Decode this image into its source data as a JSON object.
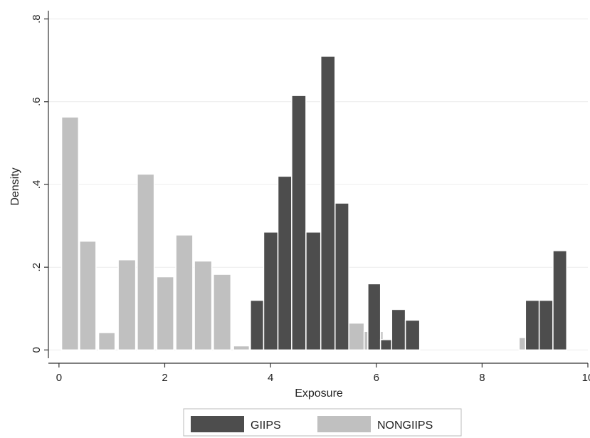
{
  "chart_data": {
    "type": "bar",
    "xlabel": "Exposure",
    "ylabel": "Density",
    "xlim": [
      -0.2,
      10
    ],
    "ylim": [
      -0.02,
      0.82
    ],
    "xticks": [
      0,
      2,
      4,
      6,
      8,
      10
    ],
    "xtick_labels": [
      "0",
      "2",
      "4",
      "6",
      "8",
      "10"
    ],
    "yticks": [
      0,
      0.2,
      0.4,
      0.6,
      0.8
    ],
    "ytick_labels": [
      "0",
      ".2",
      ".4",
      ".6",
      ".8"
    ],
    "grid": true,
    "legend": "bottom",
    "series": [
      {
        "name": "GIIPS",
        "color": "#4d4d4d",
        "bins": [
          {
            "x0": 3.62,
            "x1": 3.87,
            "value": 0.12
          },
          {
            "x0": 3.87,
            "x1": 4.14,
            "value": 0.285
          },
          {
            "x0": 4.14,
            "x1": 4.4,
            "value": 0.42
          },
          {
            "x0": 4.4,
            "x1": 4.67,
            "value": 0.615
          },
          {
            "x0": 4.67,
            "x1": 4.95,
            "value": 0.285
          },
          {
            "x0": 4.95,
            "x1": 5.22,
            "value": 0.71
          },
          {
            "x0": 5.22,
            "x1": 5.48,
            "value": 0.355
          },
          {
            "x0": 5.84,
            "x1": 6.08,
            "value": 0.16
          },
          {
            "x0": 6.08,
            "x1": 6.29,
            "value": 0.025
          },
          {
            "x0": 6.29,
            "x1": 6.55,
            "value": 0.098
          },
          {
            "x0": 6.55,
            "x1": 6.82,
            "value": 0.072
          },
          {
            "x0": 8.82,
            "x1": 9.08,
            "value": 0.12
          },
          {
            "x0": 9.08,
            "x1": 9.34,
            "value": 0.12
          },
          {
            "x0": 9.34,
            "x1": 9.6,
            "value": 0.24
          }
        ]
      },
      {
        "name": "NONGIIPS",
        "color": "#c0c0c0",
        "bins": [
          {
            "x0": 0.05,
            "x1": 0.37,
            "value": 0.563
          },
          {
            "x0": 0.39,
            "x1": 0.7,
            "value": 0.263
          },
          {
            "x0": 0.75,
            "x1": 1.06,
            "value": 0.042
          },
          {
            "x0": 1.12,
            "x1": 1.45,
            "value": 0.218
          },
          {
            "x0": 1.48,
            "x1": 1.8,
            "value": 0.425
          },
          {
            "x0": 1.85,
            "x1": 2.17,
            "value": 0.177
          },
          {
            "x0": 2.21,
            "x1": 2.53,
            "value": 0.278
          },
          {
            "x0": 2.56,
            "x1": 2.89,
            "value": 0.215
          },
          {
            "x0": 2.92,
            "x1": 3.25,
            "value": 0.183
          },
          {
            "x0": 3.3,
            "x1": 3.6,
            "value": 0.01
          },
          {
            "x0": 3.62,
            "x1": 3.97,
            "value": 0.065
          },
          {
            "x0": 3.97,
            "x1": 4.33,
            "value": 0.01
          },
          {
            "x0": 4.33,
            "x1": 4.69,
            "value": 0.03
          },
          {
            "x0": 4.69,
            "x1": 5.05,
            "value": 0.035
          },
          {
            "x0": 5.41,
            "x1": 5.77,
            "value": 0.065
          },
          {
            "x0": 5.77,
            "x1": 6.13,
            "value": 0.045
          },
          {
            "x0": 8.7,
            "x1": 9.06,
            "value": 0.03
          },
          {
            "x0": 9.06,
            "x1": 9.42,
            "value": 0.083
          }
        ]
      }
    ]
  }
}
